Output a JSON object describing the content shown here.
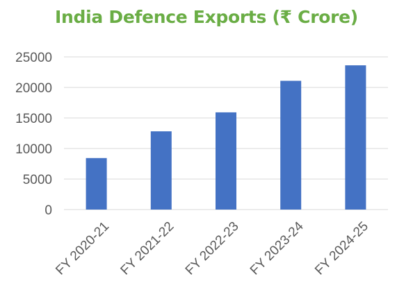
{
  "colors": {
    "title": "#6aad45",
    "bar": "#4472c4",
    "grid": "#d9d9d9",
    "tick_text": "#595959"
  },
  "chart_data": {
    "type": "bar",
    "title": "India Defence Exports (₹ Crore)",
    "categories": [
      "FY 2020-21",
      "FY 2021-22",
      "FY 2022-23",
      "FY 2023-24",
      "FY 2024-25"
    ],
    "values": [
      8434,
      12815,
      15920,
      21083,
      23622
    ],
    "ylim": [
      0,
      25000
    ],
    "yticks": [
      "0",
      "5000",
      "10000",
      "15000",
      "20000",
      "25000"
    ],
    "grid": true,
    "legend": "none",
    "xlabel": "",
    "ylabel": ""
  }
}
